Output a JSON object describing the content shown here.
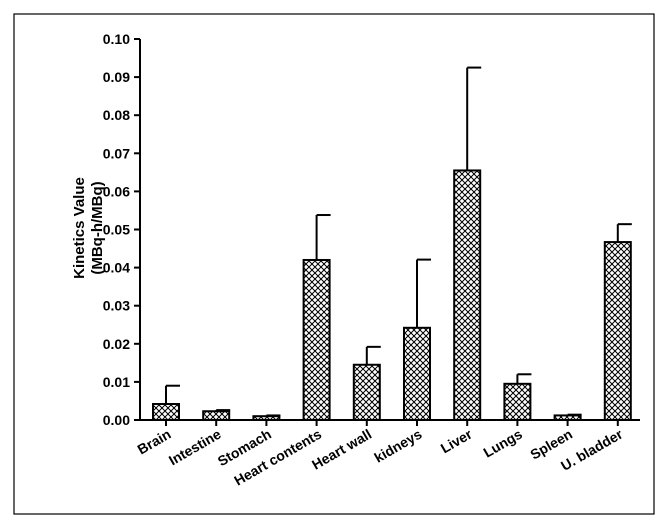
{
  "chart_data": {
    "type": "bar",
    "title": "",
    "xlabel": "",
    "ylabel": "Kinetics Value",
    "ylabel_unit": "(MBq-h/MBq)",
    "ylim": [
      0,
      0.1
    ],
    "yticks": [
      "0.00",
      "0.01",
      "0.02",
      "0.03",
      "0.04",
      "0.05",
      "0.06",
      "0.07",
      "0.08",
      "0.09",
      "0.10"
    ],
    "ytick_values": [
      0,
      0.01,
      0.02,
      0.03,
      0.04,
      0.05,
      0.06,
      0.07,
      0.08,
      0.09,
      0.1
    ],
    "categories": [
      "Brain",
      "Intestine",
      "Stomach",
      "Heart contents",
      "Heart wall",
      "kidneys",
      "Liver",
      "Lungs",
      "Spleen",
      "U. bladder"
    ],
    "values": [
      0.0042,
      0.0023,
      0.001,
      0.042,
      0.0145,
      0.0242,
      0.0655,
      0.0095,
      0.0012,
      0.0467
    ],
    "error_upper": [
      0.009,
      0.0026,
      0.0012,
      0.0538,
      0.0192,
      0.0421,
      0.0925,
      0.012,
      0.0014,
      0.0514
    ],
    "bar_pattern": "crosshatch",
    "grid": false,
    "legend": "none"
  }
}
